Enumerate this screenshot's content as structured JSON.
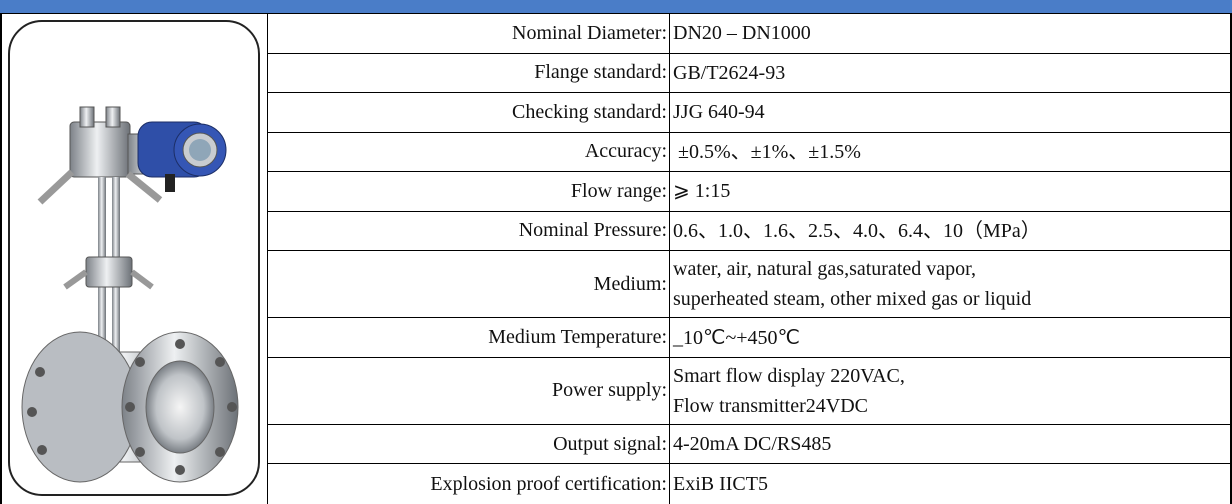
{
  "table": {
    "rows": [
      {
        "label": "Nominal Diameter:",
        "value": [
          "DN20 – DN1000"
        ]
      },
      {
        "label": "Flange standard:",
        "value": [
          "GB/T2624-93"
        ]
      },
      {
        "label": "Checking standard:",
        "value": [
          "JJG 640-94"
        ]
      },
      {
        "label": "Accuracy:",
        "value": [
          " ±0.5%、±1%、±1.5%"
        ]
      },
      {
        "label": "Flow range:",
        "value": [
          "⩾ 1:15"
        ]
      },
      {
        "label": "Nominal Pressure:",
        "value": [
          "0.6、1.0、1.6、2.5、4.0、6.4、10（MPa）"
        ]
      },
      {
        "label": "Medium:",
        "value": [
          "water, air, natural gas,saturated vapor,",
          "superheated steam, other mixed gas or liquid"
        ]
      },
      {
        "label": "Medium Temperature:",
        "value": [
          "_10℃~+450℃"
        ]
      },
      {
        "label": "Power supply:",
        "value": [
          "Smart flow display 220VAC,",
          "Flow transmitter24VDC"
        ]
      },
      {
        "label": "Output signal:",
        "value": [
          "4-20mA DC/RS485"
        ]
      },
      {
        "label": "Explosion proof certification:",
        "value": [
          "ExiB IICT5"
        ]
      }
    ]
  }
}
